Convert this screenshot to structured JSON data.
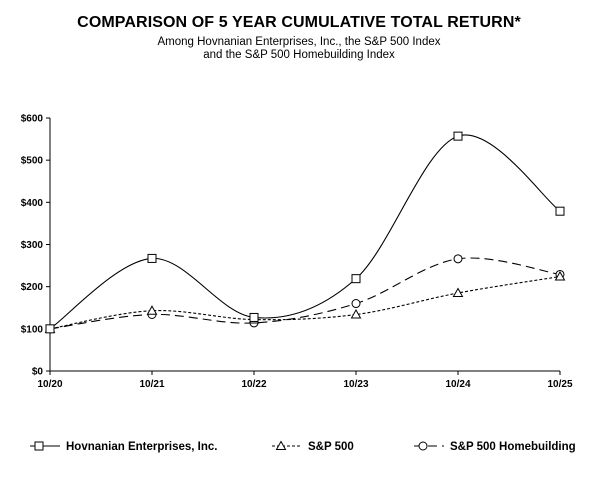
{
  "chart_data": {
    "type": "line",
    "title": "COMPARISON OF 5 YEAR CUMULATIVE TOTAL RETURN*",
    "subtitle_lines": [
      "Among Hovnanian Enterprises, Inc., the S&P 500 Index",
      "and the S&P 500 Homebuilding Index"
    ],
    "categories": [
      "10/20",
      "10/21",
      "10/22",
      "10/23",
      "10/24",
      "10/25"
    ],
    "ylim": [
      0,
      600
    ],
    "yticks": [
      0,
      100,
      200,
      300,
      400,
      500,
      600
    ],
    "ytick_labels": [
      "$0",
      "$100",
      "$200",
      "$300",
      "$400",
      "$500",
      "$600"
    ],
    "grid": false,
    "legend_position": "bottom",
    "series": [
      {
        "name": "Hovnanian Enterprises, Inc.",
        "marker": "square",
        "dash": "solid",
        "values": [
          100,
          267,
          127,
          219,
          557,
          379
        ]
      },
      {
        "name": "S&P 500",
        "marker": "triangle",
        "dash": "dotted",
        "values": [
          100,
          143,
          122,
          134,
          185,
          224
        ]
      },
      {
        "name": "S&P 500 Homebuilding",
        "marker": "circle",
        "dash": "dashed",
        "values": [
          100,
          134,
          114,
          160,
          266,
          229
        ]
      }
    ]
  }
}
